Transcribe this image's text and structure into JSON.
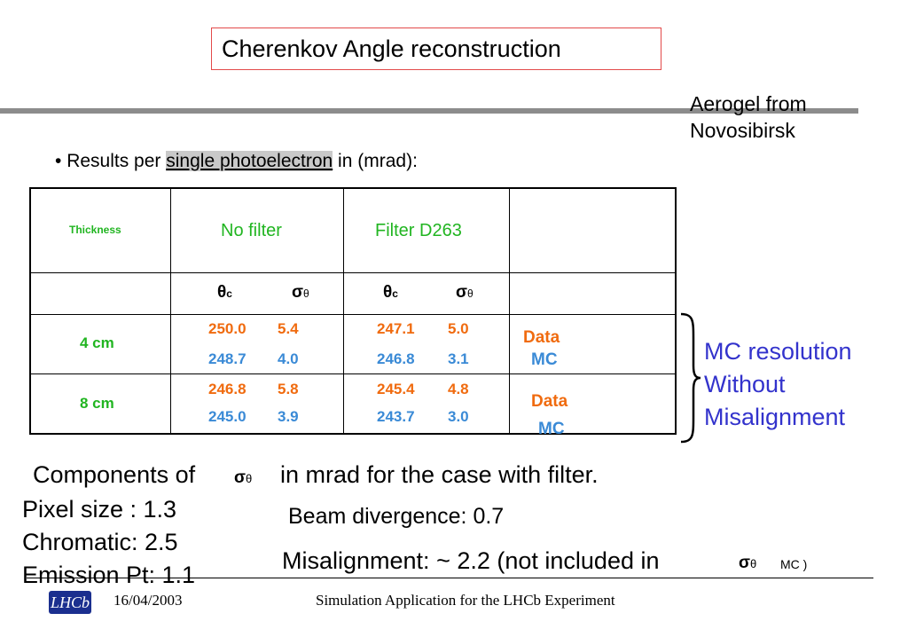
{
  "title": "Cherenkov Angle reconstruction",
  "aerogel_note": [
    "Aerogel from",
    "Novosibirsk"
  ],
  "bullet": {
    "marker": "•",
    "prefix": "Results per ",
    "highlight": "single photoelectron",
    "suffix": " in (mrad):"
  },
  "table": {
    "header": {
      "thickness": "Thickness",
      "no_filter": "No filter",
      "filter": "Filter D263"
    },
    "symbols": {
      "theta": "θ",
      "theta_sub": "c",
      "sigma": "σ",
      "sigma_sub": "θ"
    },
    "rows": [
      {
        "thickness": "4 cm",
        "data": {
          "nofilter_theta": "250.0",
          "nofilter_sigma": "5.4",
          "filter_theta": "247.1",
          "filter_sigma": "5.0"
        },
        "mc": {
          "nofilter_theta": "248.7",
          "nofilter_sigma": "4.0",
          "filter_theta": "246.8",
          "filter_sigma": "3.1"
        }
      },
      {
        "thickness": "8 cm",
        "data": {
          "nofilter_theta": "246.8",
          "nofilter_sigma": "5.8",
          "filter_theta": "245.4",
          "filter_sigma": "4.8"
        },
        "mc": {
          "nofilter_theta": "245.0",
          "nofilter_sigma": "3.9",
          "filter_theta": "243.7",
          "filter_sigma": "3.0"
        }
      }
    ],
    "row_labels": {
      "data": "Data",
      "mc": "MC"
    }
  },
  "mc_resolution": [
    "MC resolution",
    "Without",
    "Misalignment"
  ],
  "components": {
    "intro": "Components of",
    "sigma": "σ",
    "sigma_sub": "θ",
    "rest": "in mrad  for the case with filter.",
    "pixel": "Pixel size :   1.3",
    "chromatic": "Chromatic:   2.5",
    "emission": "Emission Pt: 1.1",
    "beam": "Beam divergence: 0.7",
    "misalign_prefix": "Misalignment:  ~ 2.2 (not included in",
    "misalign_sigma": "σ",
    "misalign_sub": "θ",
    "misalign_suffix": "MC )"
  },
  "footer": {
    "logo_text": "LHCb",
    "date": "16/04/2003",
    "caption": "Simulation Application for the LHCb Experiment"
  },
  "colors": {
    "green": "#21b521",
    "orange": "#f06b0f",
    "blue": "#3a8ad6",
    "mc_resolution": "#3333cc",
    "title_border": "#e34a4a"
  }
}
